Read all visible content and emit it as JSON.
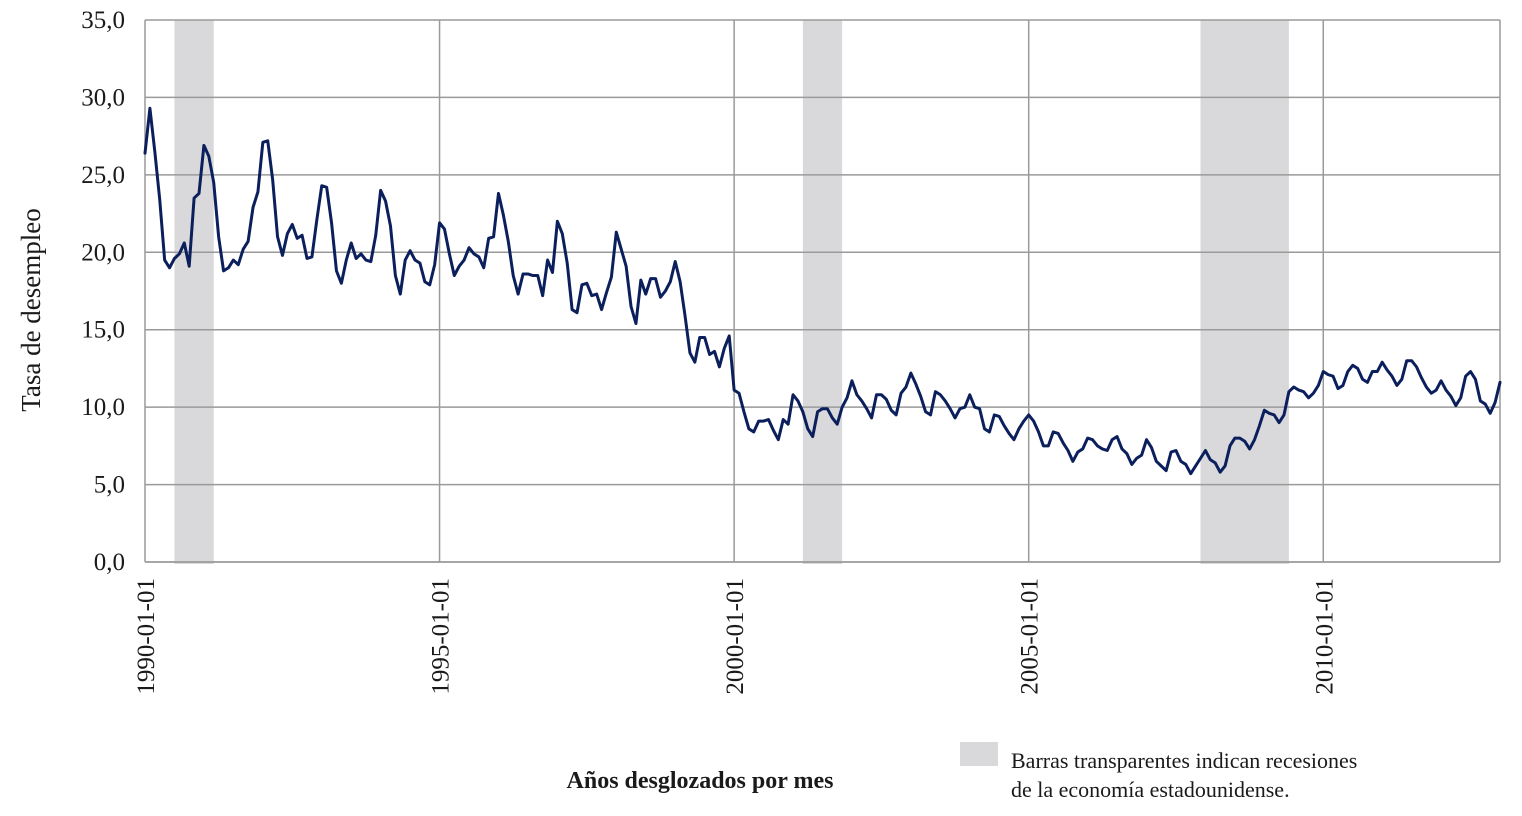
{
  "chart_data": {
    "type": "line",
    "title": "",
    "ylabel": "Tasa de desempleo",
    "xlabel": "Años desglozados por mes",
    "ylim": [
      0,
      35
    ],
    "yticks": [
      "0,0",
      "5,0",
      "10,0",
      "15,0",
      "20,0",
      "25,0",
      "30,0",
      "35,0"
    ],
    "yticks_values": [
      0,
      5,
      10,
      15,
      20,
      25,
      30,
      35
    ],
    "xlim": [
      "1990-01-01",
      "2013-01-01"
    ],
    "xticks": [
      "1990-01-01",
      "1995-01-01",
      "2000-01-01",
      "2005-01-01",
      "2010-01-01"
    ],
    "grid": true,
    "line_color": "#0b1f5c",
    "recession_color": "#d9d9dc",
    "recessions": [
      {
        "start": "1990-07-01",
        "end": "1991-03-01"
      },
      {
        "start": "2001-03-01",
        "end": "2001-11-01"
      },
      {
        "start": "2007-12-01",
        "end": "2009-06-01"
      }
    ],
    "legend_note": {
      "line1": "Barras transparentes indican recesiones",
      "line2": "de la economía estadounidense."
    },
    "series": [
      {
        "start": "1990-01-01",
        "frequency": "monthly",
        "values": [
          26.4,
          29.3,
          26.5,
          23.4,
          19.5,
          19.0,
          19.6,
          19.9,
          20.6,
          19.1,
          23.5,
          23.8,
          26.9,
          26.2,
          24.5,
          21.0,
          18.8,
          19.0,
          19.5,
          19.2,
          20.2,
          20.7,
          22.9,
          23.9,
          27.1,
          27.2,
          24.7,
          21.0,
          19.8,
          21.2,
          21.8,
          20.9,
          21.1,
          19.6,
          19.7,
          22.1,
          24.3,
          24.2,
          21.9,
          18.8,
          18.0,
          19.5,
          20.6,
          19.6,
          19.9,
          19.5,
          19.4,
          21.1,
          24.0,
          23.3,
          21.7,
          18.5,
          17.3,
          19.5,
          20.1,
          19.5,
          19.3,
          18.1,
          17.9,
          19.2,
          21.9,
          21.5,
          19.9,
          18.5,
          19.1,
          19.5,
          20.3,
          19.9,
          19.7,
          19.0,
          20.9,
          21.0,
          23.8,
          22.4,
          20.7,
          18.5,
          17.3,
          18.6,
          18.6,
          18.5,
          18.5,
          17.2,
          19.5,
          18.7,
          22.0,
          21.2,
          19.3,
          16.3,
          16.1,
          17.9,
          18.0,
          17.2,
          17.3,
          16.3,
          17.4,
          18.4,
          21.3,
          20.2,
          19.1,
          16.5,
          15.4,
          18.2,
          17.3,
          18.3,
          18.3,
          17.1,
          17.5,
          18.1,
          19.4,
          18.1,
          15.9,
          13.5,
          12.9,
          14.5,
          14.5,
          13.4,
          13.6,
          12.6,
          13.8,
          14.6,
          11.1,
          10.9,
          9.7,
          8.6,
          8.4,
          9.1,
          9.1,
          9.2,
          8.5,
          7.9,
          9.2,
          8.9,
          10.8,
          10.4,
          9.7,
          8.6,
          8.1,
          9.7,
          9.9,
          9.9,
          9.3,
          8.9,
          10.0,
          10.6,
          11.7,
          10.8,
          10.4,
          9.9,
          9.3,
          10.8,
          10.8,
          10.5,
          9.8,
          9.5,
          10.9,
          11.3,
          12.2,
          11.5,
          10.7,
          9.7,
          9.5,
          11.0,
          10.8,
          10.4,
          9.9,
          9.3,
          9.9,
          10.0,
          10.8,
          10.0,
          9.9,
          8.6,
          8.4,
          9.5,
          9.4,
          8.8,
          8.3,
          7.9,
          8.6,
          9.1,
          9.5,
          9.1,
          8.4,
          7.5,
          7.5,
          8.4,
          8.3,
          7.7,
          7.2,
          6.5,
          7.1,
          7.3,
          8.0,
          7.9,
          7.5,
          7.3,
          7.2,
          7.9,
          8.1,
          7.3,
          7.0,
          6.3,
          6.7,
          6.9,
          7.9,
          7.4,
          6.5,
          6.2,
          5.9,
          7.1,
          7.2,
          6.5,
          6.3,
          5.7,
          6.2,
          6.7,
          7.2,
          6.6,
          6.4,
          5.8,
          6.2,
          7.5,
          8.0,
          8.0,
          7.8,
          7.3,
          7.9,
          8.8,
          9.8,
          9.6,
          9.5,
          9.0,
          9.5,
          11.0,
          11.3,
          11.1,
          11.0,
          10.6,
          10.9,
          11.4,
          12.3,
          12.1,
          12.0,
          11.2,
          11.4,
          12.3,
          12.7,
          12.5,
          11.8,
          11.6,
          12.3,
          12.3,
          12.9,
          12.4,
          12.0,
          11.4,
          11.8,
          13.0,
          13.0,
          12.6,
          11.9,
          11.3,
          10.9,
          11.1,
          11.7,
          11.1,
          10.7,
          10.1,
          10.6,
          12.0,
          12.3,
          11.8,
          10.4,
          10.2,
          9.6,
          10.3,
          11.6
        ]
      }
    ]
  }
}
